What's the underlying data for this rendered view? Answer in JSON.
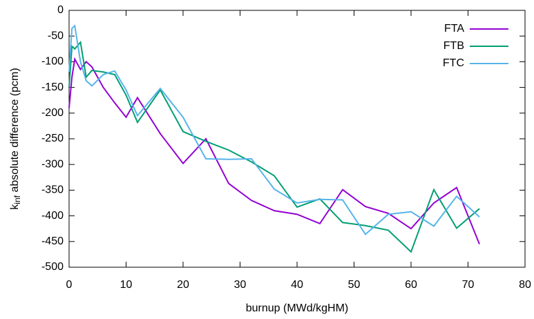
{
  "chart_data": {
    "type": "line",
    "xlabel": "burnup (MWd/kgHM)",
    "ylabel": {
      "base": "k",
      "sub": "inf",
      "rest": " absolute difference (pcm)"
    },
    "x": [
      0,
      0.5,
      1,
      2,
      3,
      4,
      6,
      8,
      10,
      12,
      16,
      20,
      24,
      28,
      32,
      36,
      40,
      44,
      48,
      52,
      56,
      60,
      64,
      68,
      72
    ],
    "series": [
      {
        "name": "FTA",
        "color": "#9400d3",
        "values": [
          -190,
          -130,
          -95,
          -115,
          -100,
          -110,
          -150,
          -180,
          -208,
          -170,
          -240,
          -298,
          -250,
          -337,
          -370,
          -390,
          -397,
          -415,
          -349,
          -382,
          -395,
          -425,
          -375,
          -345,
          -455
        ]
      },
      {
        "name": "FTB",
        "color": "#009e73",
        "values": [
          -150,
          -70,
          -75,
          -62,
          -130,
          -117,
          -120,
          -125,
          -165,
          -218,
          -155,
          -236,
          -255,
          -272,
          -295,
          -322,
          -383,
          -367,
          -413,
          -419,
          -428,
          -470,
          -349,
          -424,
          -386
        ]
      },
      {
        "name": "FTC",
        "color": "#56b4e9",
        "values": [
          -120,
          -35,
          -30,
          -100,
          -137,
          -147,
          -125,
          -118,
          -155,
          -205,
          -152,
          -208,
          -289,
          -290,
          -289,
          -348,
          -375,
          -368,
          -369,
          -436,
          -397,
          -392,
          -420,
          -362,
          -402
        ]
      }
    ],
    "xlim": [
      0,
      80
    ],
    "xticks": [
      0,
      10,
      20,
      30,
      40,
      50,
      60,
      70,
      80
    ],
    "ylim": [
      -500,
      0
    ],
    "yticks": [
      0,
      -50,
      -100,
      -150,
      -200,
      -250,
      -300,
      -350,
      -400,
      -450,
      -500
    ],
    "legend": "top-right"
  }
}
